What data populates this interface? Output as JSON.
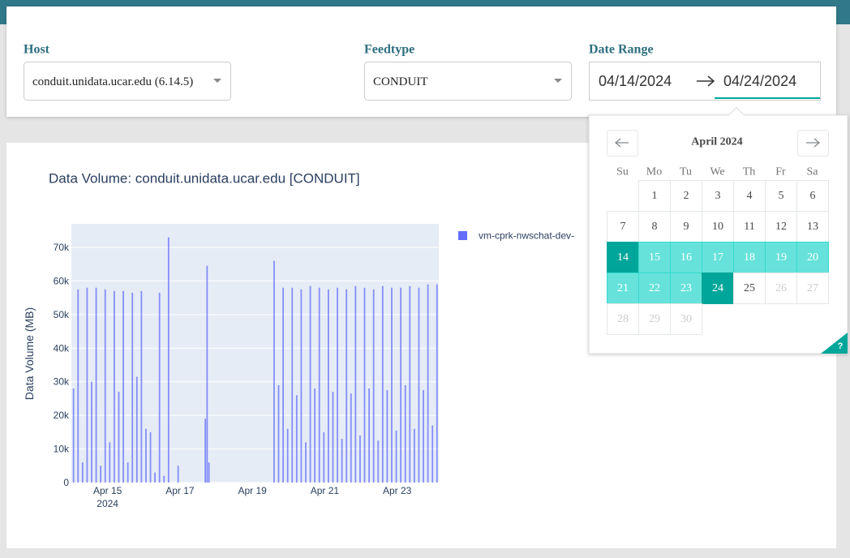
{
  "header": {
    "host": {
      "label": "Host",
      "value": "conduit.unidata.ucar.edu (6.14.5)"
    },
    "feedtype": {
      "label": "Feedtype",
      "value": "CONDUIT"
    },
    "date_range": {
      "label": "Date Range",
      "start": "04/14/2024",
      "end": "04/24/2024"
    }
  },
  "calendar": {
    "title": "April 2024",
    "weekdays": [
      "Su",
      "Mo",
      "Tu",
      "We",
      "Th",
      "Fr",
      "Sa"
    ],
    "weeks": [
      [
        1,
        2,
        3,
        4,
        5,
        6
      ],
      [
        7,
        8,
        9,
        10,
        11,
        12,
        13
      ],
      [
        14,
        15,
        16,
        17,
        18,
        19,
        20
      ],
      [
        21,
        22,
        23,
        24,
        25,
        26,
        27
      ],
      [
        28,
        29,
        30
      ]
    ],
    "disabled_from": 26,
    "help": "?"
  },
  "chart_data": {
    "type": "bar",
    "title": "Data Volume: conduit.unidata.ucar.edu [CONDUIT]",
    "y_label": "Data Volume (MB)",
    "x_year": "2024",
    "x": [
      14.06,
      14.185,
      14.31,
      14.435,
      14.56,
      14.685,
      14.81,
      14.935,
      15.06,
      15.185,
      15.31,
      15.435,
      15.56,
      15.685,
      15.81,
      15.935,
      16.06,
      16.185,
      16.31,
      16.435,
      16.56,
      16.685,
      16.95,
      17.7,
      17.75,
      17.8,
      19.6,
      19.725,
      19.85,
      19.975,
      20.1,
      20.225,
      20.35,
      20.475,
      20.6,
      20.725,
      20.85,
      20.975,
      21.1,
      21.225,
      21.35,
      21.475,
      21.6,
      21.725,
      21.85,
      21.975,
      22.1,
      22.225,
      22.35,
      22.475,
      22.6,
      22.725,
      22.85,
      22.975,
      23.1,
      23.225,
      23.35,
      23.475,
      23.6,
      23.725,
      23.85,
      23.975,
      24.1
    ],
    "series": [
      {
        "name": "vm-cprk-nwschat-dev-",
        "color": "#636efa",
        "values": [
          28000,
          57500,
          6000,
          58000,
          30000,
          58000,
          5000,
          57500,
          12000,
          57000,
          27000,
          57000,
          6000,
          56500,
          31500,
          57000,
          16000,
          15000,
          3000,
          56500,
          2000,
          73000,
          5000,
          19000,
          64500,
          6000,
          66000,
          29000,
          58000,
          16000,
          58000,
          26000,
          57500,
          12000,
          58500,
          28000,
          58000,
          15000,
          57500,
          27000,
          58000,
          13000,
          57500,
          26500,
          58500,
          14000,
          58000,
          28000,
          57500,
          12500,
          58500,
          27500,
          58000,
          15500,
          58000,
          29000,
          58500,
          16000,
          58000,
          27500,
          59000,
          17000,
          59000
        ]
      }
    ],
    "xlim": [
      14,
      24.15
    ],
    "ylim": [
      0,
      77000
    ],
    "xticks": [
      {
        "value": 15,
        "label": "Apr 15"
      },
      {
        "value": 17,
        "label": "Apr 17"
      },
      {
        "value": 19,
        "label": "Apr 19"
      },
      {
        "value": 21,
        "label": "Apr 21"
      },
      {
        "value": 23,
        "label": "Apr 23"
      }
    ],
    "yticks": [
      0,
      {
        "value": 10000,
        "label": "10k"
      },
      {
        "value": 20000,
        "label": "20k"
      },
      {
        "value": 30000,
        "label": "30k"
      },
      {
        "value": 40000,
        "label": "40k"
      },
      {
        "value": 50000,
        "label": "50k"
      },
      {
        "value": 60000,
        "label": "60k"
      },
      {
        "value": 70000,
        "label": "70k"
      }
    ],
    "grid": true
  }
}
